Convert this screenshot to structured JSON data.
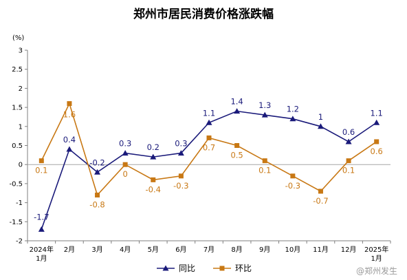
{
  "chart_data": {
    "type": "line",
    "title": "郑州市居民消费价格涨跌幅",
    "unit_label": "(%)",
    "categories": [
      "2024年\n1月",
      "2月",
      "3月",
      "4月",
      "5月",
      "6月",
      "7月",
      "8月",
      "9月",
      "10月",
      "11月",
      "12月",
      "2025年\n1月"
    ],
    "ylim": [
      -2,
      3
    ],
    "yticks": [
      -2,
      -1.5,
      -1,
      -0.5,
      0,
      0.5,
      1,
      1.5,
      2,
      2.5,
      3
    ],
    "series": [
      {
        "name": "同比",
        "color": "#1a1a7a",
        "marker": "triangle",
        "values": [
          -1.7,
          0.4,
          -0.2,
          0.3,
          0.2,
          0.3,
          1.1,
          1.4,
          1.3,
          1.2,
          1,
          0.6,
          1.1
        ]
      },
      {
        "name": "环比",
        "color": "#c87814",
        "marker": "square",
        "values": [
          0.1,
          1.6,
          -0.8,
          0,
          -0.4,
          -0.3,
          0.7,
          0.5,
          0.1,
          -0.3,
          -0.7,
          0.1,
          0.6
        ]
      }
    ],
    "legend_position": "bottom-center",
    "grid": false
  },
  "watermark": "@郑州发生"
}
